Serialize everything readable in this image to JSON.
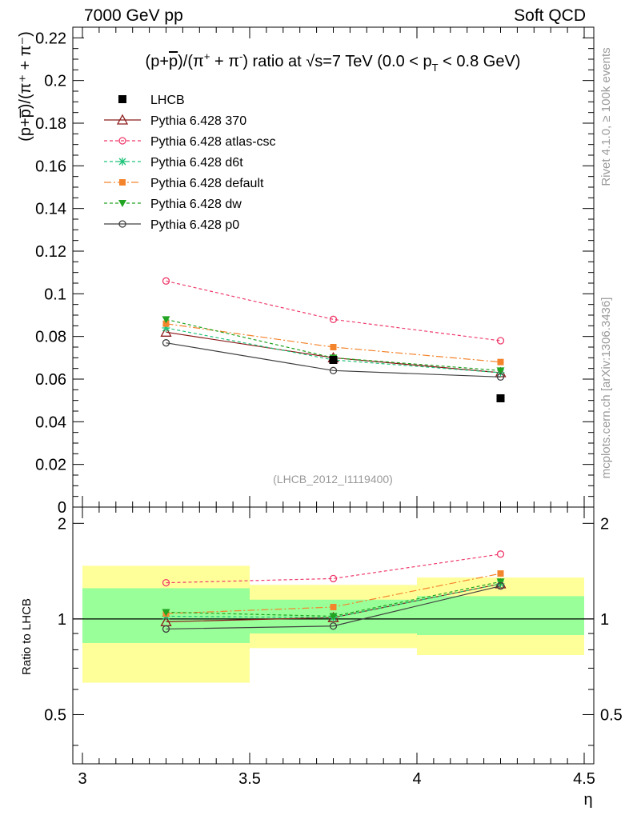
{
  "header": {
    "left": "7000 GeV pp",
    "right": "Soft QCD"
  },
  "side_text": {
    "rivet": "Rivet 4.1.0, ≥ 100k events",
    "site": "mcplots.cern.ch [arXiv:1306.3436]"
  },
  "watermark": "(LHCB_2012_I1119400)",
  "chart_data": {
    "type": "line",
    "title": "(p+p̅)/(π⁺ + π⁻) ratio at √s=7 TeV (0.0 < pT < 0.8 GeV)",
    "title_parts": {
      "prefix": "(p+",
      "pbar": "p",
      "mid": ")/(π",
      "plus": "+",
      "mid2": " + π",
      "minus": "-",
      "suffix": ") ratio at ",
      "sqrt": "√",
      "s_part": "s=7 TeV (0.0 < p",
      "sub_T": "T",
      "tail": " < 0.8 GeV)"
    },
    "xlabel": "η",
    "ylabel": "(p+p̅)/(π⁺ + π⁻)",
    "ratio_ylabel": "Ratio to LHCB",
    "xlim": [
      3.0,
      4.5
    ],
    "ylim": [
      0,
      0.225
    ],
    "ratio_ylim": [
      0.35,
      2.25
    ],
    "x_ticks": [
      "3",
      "3.5",
      "4",
      "4.5"
    ],
    "y_ticks": [
      "0",
      "0.02",
      "0.04",
      "0.06",
      "0.08",
      "0.1",
      "0.12",
      "0.14",
      "0.16",
      "0.18",
      "0.2",
      "0.22"
    ],
    "ratio_ticks": [
      "0.5",
      "1",
      "2"
    ],
    "x": [
      3.25,
      3.75,
      4.25
    ],
    "bins": [
      [
        3.0,
        3.5
      ],
      [
        3.5,
        4.0
      ],
      [
        4.0,
        4.5
      ]
    ],
    "data": {
      "name": "LHCB",
      "values": [
        null,
        0.069,
        0.051
      ]
    },
    "band_green": [
      [
        0.84,
        1.25
      ],
      [
        0.9,
        1.15
      ],
      [
        0.89,
        1.18
      ]
    ],
    "band_yellow": [
      [
        0.63,
        1.47
      ],
      [
        0.81,
        1.28
      ],
      [
        0.77,
        1.35
      ]
    ],
    "series": [
      {
        "name": "Pythia 6.428 370",
        "color": "#8b1a1a",
        "dash": "none",
        "marker": "triangle-open",
        "values": [
          0.082,
          0.07,
          0.063
        ],
        "ratio": [
          0.98,
          1.01,
          1.29
        ]
      },
      {
        "name": "Pythia 6.428 atlas-csc",
        "color": "#ef3b6c",
        "dash": "4,3",
        "marker": "circle-open",
        "values": [
          0.106,
          0.088,
          0.078
        ],
        "ratio": [
          1.3,
          1.34,
          1.6
        ]
      },
      {
        "name": "Pythia 6.428 d6t",
        "color": "#1fc47a",
        "dash": "4,3",
        "marker": "star",
        "values": [
          0.084,
          0.069,
          0.063
        ],
        "ratio": [
          1.02,
          1.01,
          1.29
        ]
      },
      {
        "name": "Pythia 6.428 default",
        "color": "#f4842c",
        "dash": "9,3,2,3",
        "marker": "square",
        "values": [
          0.086,
          0.075,
          0.068
        ],
        "ratio": [
          1.04,
          1.09,
          1.39
        ]
      },
      {
        "name": "Pythia 6.428 dw",
        "color": "#21a421",
        "dash": "4,3",
        "marker": "triangle-down",
        "values": [
          0.088,
          0.07,
          0.064
        ],
        "ratio": [
          1.05,
          1.02,
          1.31
        ]
      },
      {
        "name": "Pythia 6.428 p0",
        "color": "#404040",
        "dash": "none",
        "marker": "circle-open",
        "values": [
          0.077,
          0.064,
          0.061
        ],
        "ratio": [
          0.93,
          0.95,
          1.27
        ]
      }
    ]
  }
}
